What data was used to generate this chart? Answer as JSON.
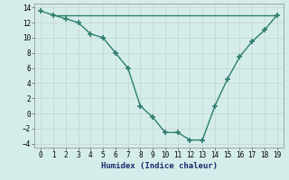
{
  "x": [
    0,
    1,
    2,
    3,
    4,
    5,
    6,
    7,
    8,
    9,
    10,
    11,
    12,
    13,
    14,
    15,
    16,
    17,
    18,
    19
  ],
  "y_curve": [
    13.5,
    13.0,
    12.5,
    12.0,
    10.5,
    10.0,
    8.0,
    6.0,
    1.0,
    -0.5,
    -2.5,
    -2.5,
    -3.5,
    -3.5,
    1.0,
    4.5,
    7.5,
    9.5,
    11.0,
    13.0
  ],
  "hline_y": 13.0,
  "hline_x_start": 1,
  "hline_x_end": 19,
  "color": "#2d7d6e",
  "xlabel": "Humidex (Indice chaleur)",
  "xlim": [
    -0.5,
    19.5
  ],
  "ylim": [
    -4.5,
    14.5
  ],
  "yticks": [
    -4,
    -2,
    0,
    2,
    4,
    6,
    8,
    10,
    12,
    14
  ],
  "xticks": [
    0,
    1,
    2,
    3,
    4,
    5,
    6,
    7,
    8,
    9,
    10,
    11,
    12,
    13,
    14,
    15,
    16,
    17,
    18,
    19
  ],
  "bg_color": "#d5edea",
  "grid_color": "#c8dbd8",
  "marker": "+",
  "markersize": 5,
  "linewidth": 1.0
}
